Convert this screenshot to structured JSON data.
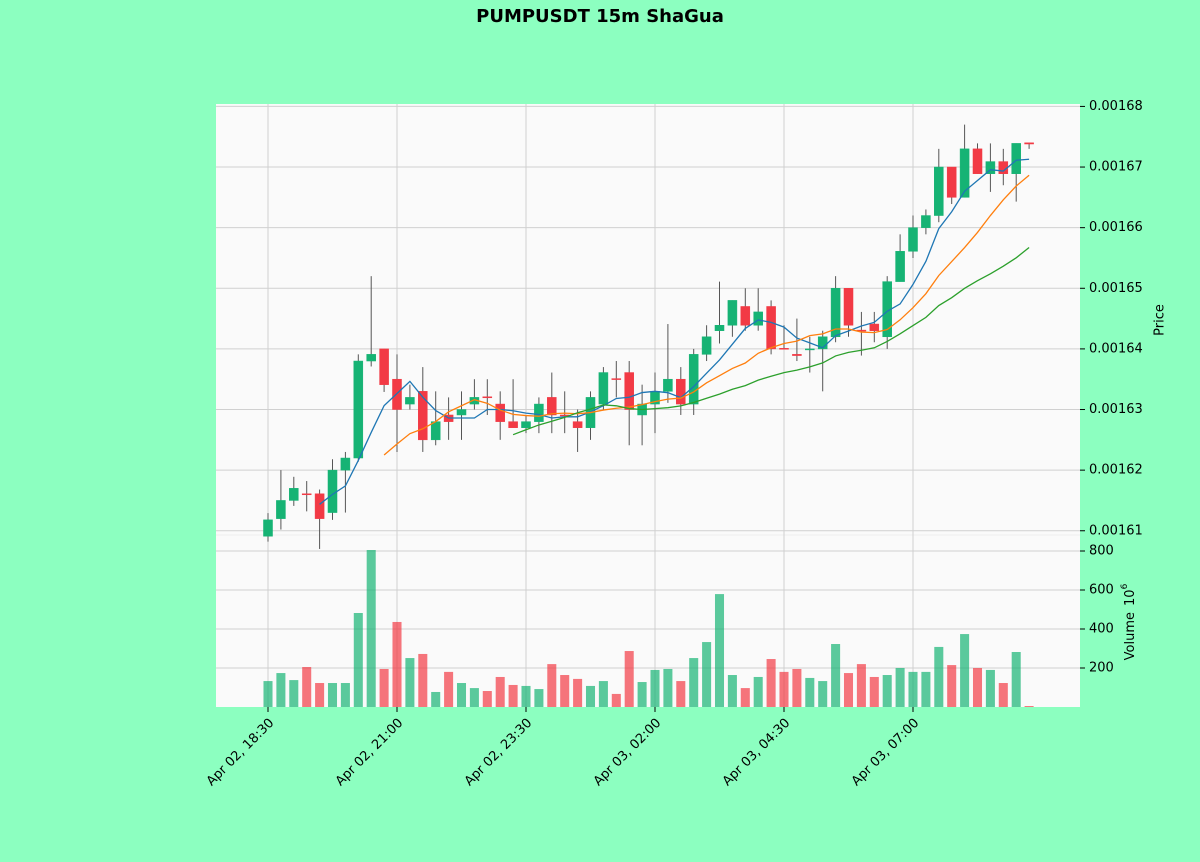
{
  "chart_data": {
    "type": "candlestick",
    "title": "PUMPUSDT 15m ShaGua",
    "y_label": "Price",
    "y2_label": "Volume",
    "y2_unit_base": "10",
    "y2_unit_exponent": "6",
    "categories": [
      "Apr 02, 18:30",
      null,
      null,
      null,
      null,
      null,
      null,
      null,
      null,
      null,
      "Apr 02, 21:00",
      null,
      null,
      null,
      null,
      null,
      null,
      null,
      null,
      null,
      "Apr 02, 23:30",
      null,
      null,
      null,
      null,
      null,
      null,
      null,
      null,
      null,
      "Apr 03, 02:00",
      null,
      null,
      null,
      null,
      null,
      null,
      null,
      null,
      null,
      "Apr 03, 04:30",
      null,
      null,
      null,
      null,
      null,
      null,
      null,
      null,
      null,
      "Apr 03, 07:00",
      null,
      null,
      null,
      null,
      null,
      null,
      null,
      null,
      null
    ],
    "open": [
      0.0016091,
      0.001612,
      0.001615,
      0.0016161,
      0.0016161,
      0.001613,
      0.00162,
      0.001622,
      0.001638,
      0.00164,
      0.001635,
      0.0016309,
      0.001633,
      0.001625,
      0.0016291,
      0.0016291,
      0.0016309,
      0.0016321,
      0.0016309,
      0.001628,
      0.001627,
      0.001628,
      0.001632,
      0.0016291,
      0.001628,
      0.001627,
      0.0016309,
      0.0016351,
      0.0016361,
      0.0016291,
      0.0016309,
      0.001633,
      0.001635,
      0.0016309,
      0.0016391,
      0.001643,
      0.0016439,
      0.001647,
      0.0016439,
      0.001647,
      0.0016401,
      0.0016391,
      0.0016399,
      0.00164,
      0.001642,
      0.00165,
      0.0016431,
      0.0016441,
      0.001642,
      0.0016511,
      0.0016561,
      0.00166,
      0.001662,
      0.00167,
      0.001665,
      0.001673,
      0.0016689,
      0.0016709,
      0.0016689,
      0.001674
    ],
    "high": [
      0.0016129,
      0.00162,
      0.0016189,
      0.0016182,
      0.0016168,
      0.0016218,
      0.001623,
      0.0016391,
      0.001652,
      0.00164,
      0.0016391,
      0.0016341,
      0.001637,
      0.001633,
      0.001632,
      0.001633,
      0.001635,
      0.001635,
      0.001633,
      0.001635,
      0.0016291,
      0.001632,
      0.0016361,
      0.001633,
      0.00163,
      0.001633,
      0.001637,
      0.001638,
      0.001638,
      0.0016341,
      0.0016361,
      0.0016441,
      0.001637,
      0.00164,
      0.0016439,
      0.0016511,
      0.001648,
      0.00165,
      0.00165,
      0.001648,
      0.0016439,
      0.001645,
      0.001642,
      0.001643,
      0.001652,
      0.00165,
      0.0016461,
      0.0016461,
      0.001652,
      0.0016589,
      0.001662,
      0.001663,
      0.001673,
      0.00167,
      0.001677,
      0.0016739,
      0.0016739,
      0.001673,
      0.0016739,
      0.001674
    ],
    "low": [
      0.0016082,
      0.0016102,
      0.0016141,
      0.0016132,
      0.001607,
      0.0016118,
      0.001613,
      0.0016214,
      0.0016371,
      0.0016329,
      0.001623,
      0.00163,
      0.001623,
      0.0016241,
      0.001625,
      0.001625,
      0.00163,
      0.0016291,
      0.001625,
      0.001627,
      0.0016261,
      0.0016261,
      0.0016261,
      0.0016261,
      0.001623,
      0.001625,
      0.00163,
      0.001632,
      0.0016241,
      0.0016241,
      0.0016261,
      0.0016311,
      0.0016291,
      0.0016291,
      0.001638,
      0.0016409,
      0.001642,
      0.001643,
      0.001643,
      0.0016391,
      0.00164,
      0.001638,
      0.0016361,
      0.001633,
      0.0016411,
      0.001642,
      0.0016389,
      0.0016411,
      0.00164,
      0.0016511,
      0.001655,
      0.0016589,
      0.0016609,
      0.0016639,
      0.001665,
      0.0016689,
      0.0016659,
      0.001667,
      0.0016643,
      0.001673
    ],
    "close": [
      0.0016118,
      0.001615,
      0.001617,
      0.001616,
      0.001612,
      0.00162,
      0.001622,
      0.001638,
      0.0016391,
      0.0016341,
      0.00163,
      0.001632,
      0.001625,
      0.001628,
      0.001628,
      0.00163,
      0.001632,
      0.001632,
      0.001628,
      0.001627,
      0.001628,
      0.0016309,
      0.0016291,
      0.001629,
      0.001627,
      0.001632,
      0.0016361,
      0.001635,
      0.00163,
      0.0016309,
      0.001633,
      0.001635,
      0.0016309,
      0.0016391,
      0.001642,
      0.0016439,
      0.001648,
      0.0016439,
      0.0016461,
      0.00164,
      0.00164,
      0.0016389,
      0.00164,
      0.001642,
      0.00165,
      0.0016439,
      0.001643,
      0.001643,
      0.0016511,
      0.0016561,
      0.00166,
      0.001662,
      0.00167,
      0.001665,
      0.001673,
      0.0016689,
      0.0016709,
      0.0016689,
      0.0016739,
      0.0016738
    ],
    "volume": [
      133,
      174,
      138,
      205,
      123,
      123,
      123,
      482,
      805,
      195,
      436,
      251,
      272,
      77,
      180,
      123,
      97,
      82,
      154,
      113,
      108,
      92,
      220,
      164,
      144,
      108,
      133,
      67,
      287,
      128,
      190,
      195,
      133,
      251,
      333,
      579,
      164,
      97,
      154,
      246,
      180,
      195,
      149,
      133,
      323,
      174,
      220,
      154,
      164,
      200,
      180,
      180,
      308,
      215,
      374,
      200,
      190,
      123,
      282,
      5
    ],
    "up_color": "#16b374",
    "down_color": "#f23a45",
    "moving_averages": [
      {
        "period": 5,
        "color": "#1f77b4"
      },
      {
        "period": 10,
        "color": "#ff7f0e"
      },
      {
        "period": 20,
        "color": "#2ca02c"
      }
    ],
    "ylim": [
      0.0016093,
      0.0016804
    ],
    "yticks": [
      0.00161,
      0.00162,
      0.00163,
      0.00164,
      0.00165,
      0.00166,
      0.00167,
      0.00168
    ],
    "y2lim": [
      0,
      882
    ],
    "y2ticks": [
      200,
      400,
      600,
      800
    ],
    "grid": true
  }
}
